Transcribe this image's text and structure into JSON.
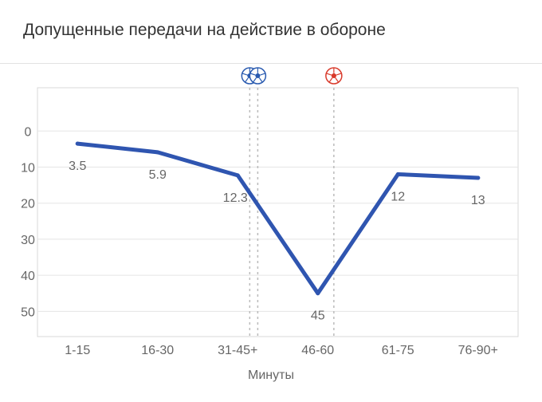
{
  "title": "Допущенные передачи на действие в обороне",
  "chart_data": {
    "type": "line",
    "title": "Допущенные передачи на действие в обороне",
    "xlabel": "Минуты",
    "ylabel": "",
    "categories": [
      "1-15",
      "16-30",
      "31-45+",
      "46-60",
      "61-75",
      "76-90+"
    ],
    "series": [
      {
        "values": [
          3.5,
          5.9,
          12.3,
          45,
          12,
          13
        ],
        "labels": [
          "3.5",
          "5.9",
          "12.3",
          "45",
          "12",
          "13"
        ]
      }
    ],
    "y_axis": {
      "reversed": true,
      "ticks": [
        0,
        10,
        20,
        30,
        40,
        50
      ],
      "range": [
        -12,
        57
      ]
    },
    "x_axis_events": [
      {
        "x": 2.15,
        "icon": "soccer-ball-icon",
        "color": "#2a5bb0"
      },
      {
        "x": 2.25,
        "icon": "soccer-ball-icon",
        "color": "#2a5bb0"
      },
      {
        "x": 3.2,
        "icon": "soccer-ball-icon",
        "color": "#d93a2b"
      }
    ],
    "grid": true,
    "colors": {
      "line": "#2f55b0",
      "grid": "#e5e5e5",
      "axis_text": "#666666",
      "event_line": "#bbbbbb"
    }
  }
}
